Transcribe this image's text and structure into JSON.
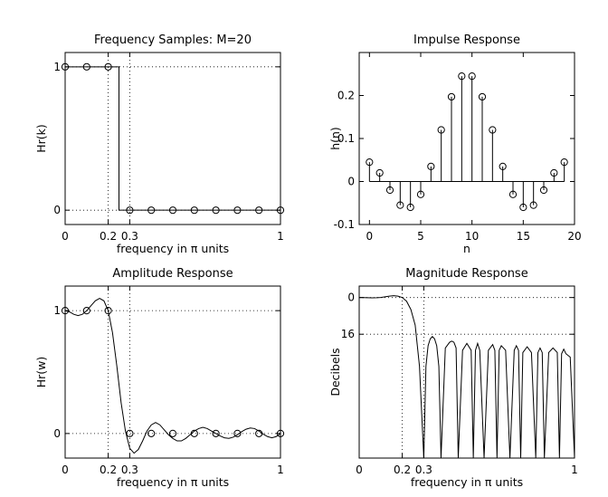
{
  "figure": {
    "background": "#ffffff",
    "line_color": "#000000"
  },
  "chart_data": [
    {
      "id": "freq-samples",
      "type": "stem",
      "title": "Frequency Samples: M=20",
      "xlabel_parts": [
        "frequency in ",
        "π",
        " units"
      ],
      "ylabel": "Hr(k)",
      "xlim": [
        0,
        1
      ],
      "ylim": [
        -0.1,
        1.1
      ],
      "xticks": [
        0,
        0.2,
        0.3,
        1
      ],
      "xtick_labels": [
        "0",
        "0.2",
        "0.3",
        "1"
      ],
      "yticks": [
        0,
        1
      ],
      "ytick_labels": [
        "0",
        "1"
      ],
      "grid": true,
      "x": [
        0,
        0.1,
        0.2,
        0.3,
        0.4,
        0.5,
        0.6,
        0.7,
        0.8,
        0.9,
        1.0
      ],
      "y": [
        1,
        1,
        1,
        0,
        0,
        0,
        0,
        0,
        0,
        0,
        0
      ],
      "ideal_response": [
        [
          0,
          1
        ],
        [
          0.25,
          1
        ],
        [
          0.25,
          0
        ],
        [
          1,
          0
        ]
      ]
    },
    {
      "id": "impulse",
      "type": "stem",
      "title": "Impulse Response",
      "xlabel": "n",
      "ylabel": "h(n)",
      "xlim": [
        -1,
        20
      ],
      "ylim": [
        -0.1,
        0.3
      ],
      "xticks": [
        0,
        5,
        10,
        15,
        20
      ],
      "xtick_labels": [
        "0",
        "5",
        "10",
        "15",
        "20"
      ],
      "yticks": [
        -0.1,
        0,
        0.1,
        0.2
      ],
      "ytick_labels": [
        "-0.1",
        "0",
        "0.1",
        "0.2"
      ],
      "grid": false,
      "x": [
        0,
        1,
        2,
        3,
        4,
        5,
        6,
        7,
        8,
        9,
        10,
        11,
        12,
        13,
        14,
        15,
        16,
        17,
        18,
        19
      ],
      "y": [
        0.045,
        0.02,
        -0.02,
        -0.055,
        -0.06,
        -0.03,
        0.035,
        0.12,
        0.197,
        0.245,
        0.245,
        0.197,
        0.12,
        0.035,
        -0.03,
        -0.06,
        -0.055,
        -0.02,
        0.02,
        0.045
      ],
      "baseline": [
        0,
        19
      ]
    },
    {
      "id": "amplitude",
      "type": "line",
      "title": "Amplitude Response",
      "xlabel_parts": [
        "frequency in ",
        "π",
        " units"
      ],
      "ylabel": "Hr(w)",
      "xlim": [
        0,
        1
      ],
      "ylim": [
        -0.2,
        1.2
      ],
      "xticks": [
        0,
        0.2,
        0.3,
        1
      ],
      "xtick_labels": [
        "0",
        "0.2",
        "0.3",
        "1"
      ],
      "yticks": [
        0,
        1
      ],
      "ytick_labels": [
        "0",
        "1"
      ],
      "grid": true,
      "curve_x": [
        0,
        0.02,
        0.04,
        0.06,
        0.08,
        0.1,
        0.12,
        0.14,
        0.16,
        0.18,
        0.2,
        0.22,
        0.24,
        0.26,
        0.28,
        0.3,
        0.32,
        0.34,
        0.36,
        0.38,
        0.4,
        0.42,
        0.44,
        0.46,
        0.48,
        0.5,
        0.52,
        0.54,
        0.56,
        0.58,
        0.6,
        0.62,
        0.64,
        0.66,
        0.68,
        0.7,
        0.72,
        0.74,
        0.76,
        0.78,
        0.8,
        0.82,
        0.84,
        0.86,
        0.88,
        0.9,
        0.92,
        0.94,
        0.96,
        0.98,
        1.0
      ],
      "curve_y": [
        1.0,
        0.99,
        0.97,
        0.96,
        0.97,
        1.0,
        1.04,
        1.08,
        1.1,
        1.08,
        1.0,
        0.82,
        0.55,
        0.25,
        0.02,
        -0.12,
        -0.16,
        -0.13,
        -0.06,
        0.02,
        0.07,
        0.09,
        0.07,
        0.03,
        -0.01,
        -0.04,
        -0.06,
        -0.06,
        -0.04,
        -0.01,
        0.02,
        0.04,
        0.05,
        0.04,
        0.02,
        0.0,
        -0.02,
        -0.035,
        -0.04,
        -0.03,
        -0.01,
        0.015,
        0.035,
        0.045,
        0.04,
        0.02,
        -0.005,
        -0.025,
        -0.035,
        -0.025,
        0.0
      ],
      "sample_x": [
        0,
        0.1,
        0.2,
        0.3,
        0.4,
        0.5,
        0.6,
        0.7,
        0.8,
        0.9,
        1.0
      ],
      "sample_y": [
        1,
        1,
        1,
        0,
        0,
        0,
        0,
        0,
        0,
        0,
        0
      ]
    },
    {
      "id": "magnitude",
      "type": "line",
      "title": "Magnitude Response",
      "xlabel_parts": [
        "frequency in ",
        "π",
        " units"
      ],
      "ylabel": "Decibels",
      "xlim": [
        0,
        1
      ],
      "ylim": [
        -70,
        5
      ],
      "xticks": [
        0,
        0.2,
        0.3,
        1
      ],
      "xtick_labels": [
        "0",
        "0.2",
        "0.3",
        "1"
      ],
      "yticks": [
        0,
        -16
      ],
      "ytick_labels": [
        "0",
        "16"
      ],
      "grid": true,
      "curve_x": [
        0,
        0.02,
        0.04,
        0.06,
        0.08,
        0.1,
        0.12,
        0.14,
        0.16,
        0.18,
        0.2,
        0.22,
        0.24,
        0.26,
        0.28,
        0.3,
        0.31,
        0.32,
        0.33,
        0.34,
        0.35,
        0.36,
        0.37,
        0.38,
        0.4,
        0.42,
        0.43,
        0.44,
        0.45,
        0.46,
        0.48,
        0.5,
        0.52,
        0.53,
        0.54,
        0.55,
        0.56,
        0.58,
        0.6,
        0.62,
        0.63,
        0.64,
        0.65,
        0.66,
        0.68,
        0.7,
        0.72,
        0.73,
        0.74,
        0.75,
        0.76,
        0.78,
        0.8,
        0.82,
        0.83,
        0.84,
        0.85,
        0.86,
        0.88,
        0.9,
        0.92,
        0.93,
        0.94,
        0.95,
        0.96,
        0.98,
        1.0
      ],
      "curve_y": [
        0,
        -0.05,
        -0.1,
        -0.15,
        -0.1,
        0,
        0.3,
        0.6,
        0.8,
        0.6,
        0,
        -1.6,
        -5.2,
        -12,
        -30,
        -70,
        -30,
        -21,
        -18,
        -17,
        -18,
        -21,
        -30,
        -70,
        -22,
        -19.5,
        -19,
        -19.5,
        -22,
        -70,
        -23,
        -20,
        -23,
        -70,
        -23,
        -20,
        -23,
        -70,
        -23,
        -20.5,
        -23,
        -70,
        -23,
        -21,
        -23,
        -70,
        -23,
        -21,
        -23,
        -70,
        -24,
        -21.5,
        -24,
        -70,
        -24,
        -22,
        -24,
        -70,
        -24,
        -22,
        -24,
        -70,
        -24.5,
        -22.5,
        -24.5,
        -26,
        -70
      ]
    }
  ]
}
